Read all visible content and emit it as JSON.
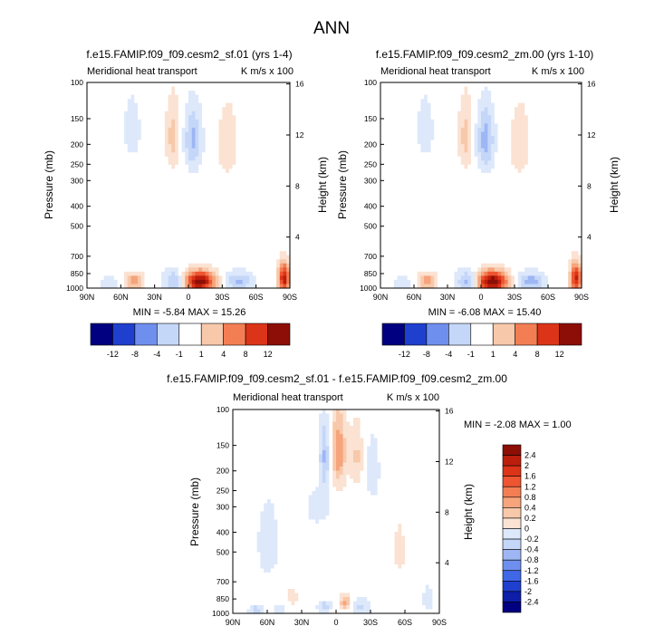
{
  "page_title": "ANN",
  "colors": {
    "blue_scale": [
      "#000080",
      "#0d1ea8",
      "#1f3fce",
      "#3f67e6",
      "#6f8fee",
      "#9eb6f4",
      "#c5d7f8",
      "#dde8fb"
    ],
    "neutral": "#ffffff",
    "red_scale": [
      "#fbe2d2",
      "#f8c8aa",
      "#f5a47c",
      "#f37e54",
      "#ee5530",
      "#dc3418",
      "#bb1e0c",
      "#8c0e06"
    ]
  },
  "chart_data": [
    {
      "type": "heatmap",
      "title": "f.e15.FAMIP.f09_f09.cesm2_sf.01 (yrs 1-4)",
      "left_string": "Meridional heat transport",
      "right_string": "K m/s x 100",
      "ylabel": "Pressure (mb)",
      "ylabel_right": "Height (km)",
      "x_ticks": [
        "90N",
        "60N",
        "30N",
        "0",
        "30S",
        "60S",
        "90S"
      ],
      "y_ticks": [
        "100",
        "150",
        "200",
        "250",
        "300",
        "400",
        "500",
        "700",
        "850",
        "1000"
      ],
      "y_right_ticks": [
        "16",
        "12",
        "8",
        "4"
      ],
      "stats": "MIN = -5.84  MAX = 15.26",
      "x_range": [
        90,
        -90
      ],
      "y_range": [
        100,
        1000
      ],
      "y_scale": "log",
      "colorbar": {
        "orientation": "horizontal",
        "labels": [
          "-12",
          "-8",
          "-4",
          "-1",
          "1",
          "4",
          "8",
          "12"
        ]
      },
      "features": [
        {
          "lat": -10,
          "p": 930,
          "value": 14,
          "w": 14,
          "h": 110
        },
        {
          "lat": 12,
          "p": 930,
          "value": -5,
          "w": 9,
          "h": 110
        },
        {
          "lat": 48,
          "p": 930,
          "value": 6,
          "w": 8,
          "h": 90
        },
        {
          "lat": -45,
          "p": 930,
          "value": -4.5,
          "w": 12,
          "h": 90
        },
        {
          "lat": 70,
          "p": 950,
          "value": -2,
          "w": 8,
          "h": 80
        },
        {
          "lat": -85,
          "p": 900,
          "value": 12,
          "w": 5,
          "h": 150
        },
        {
          "lat": -4,
          "p": 190,
          "value": -5,
          "w": 8,
          "h": 70
        },
        {
          "lat": 14,
          "p": 185,
          "value": 3,
          "w": 5,
          "h": 55
        },
        {
          "lat": -35,
          "p": 200,
          "value": 2.5,
          "w": 8,
          "h": 70
        },
        {
          "lat": 50,
          "p": 170,
          "value": -1.5,
          "w": 8,
          "h": 60
        }
      ]
    },
    {
      "type": "heatmap",
      "title": "f.e15.FAMIP.f09_f09.cesm2_zm.00 (yrs 1-10)",
      "left_string": "Meridional heat transport",
      "right_string": "K m/s x 100",
      "ylabel": "Pressure (mb)",
      "ylabel_right": "Height (km)",
      "x_ticks": [
        "90N",
        "60N",
        "30N",
        "0",
        "30S",
        "60S",
        "90S"
      ],
      "y_ticks": [
        "100",
        "150",
        "200",
        "250",
        "300",
        "400",
        "500",
        "700",
        "850",
        "1000"
      ],
      "y_right_ticks": [
        "16",
        "12",
        "8",
        "4"
      ],
      "stats": "MIN = -6.08  MAX = 15.40",
      "x_range": [
        90,
        -90
      ],
      "y_range": [
        100,
        1000
      ],
      "y_scale": "log",
      "colorbar": {
        "orientation": "horizontal",
        "labels": [
          "-12",
          "-8",
          "-4",
          "-1",
          "1",
          "4",
          "8",
          "12"
        ]
      },
      "features": [
        {
          "lat": -10,
          "p": 930,
          "value": 14.5,
          "w": 14,
          "h": 110
        },
        {
          "lat": 12,
          "p": 930,
          "value": -5.5,
          "w": 9,
          "h": 110
        },
        {
          "lat": 48,
          "p": 930,
          "value": 6,
          "w": 8,
          "h": 90
        },
        {
          "lat": -45,
          "p": 930,
          "value": -5,
          "w": 12,
          "h": 90
        },
        {
          "lat": 70,
          "p": 950,
          "value": -2,
          "w": 8,
          "h": 80
        },
        {
          "lat": -85,
          "p": 900,
          "value": 11,
          "w": 5,
          "h": 150
        },
        {
          "lat": -4,
          "p": 190,
          "value": -5.5,
          "w": 8,
          "h": 70
        },
        {
          "lat": 14,
          "p": 185,
          "value": 3,
          "w": 5,
          "h": 55
        },
        {
          "lat": -35,
          "p": 200,
          "value": 2.5,
          "w": 8,
          "h": 70
        },
        {
          "lat": 50,
          "p": 170,
          "value": -1.5,
          "w": 8,
          "h": 60
        }
      ]
    },
    {
      "type": "heatmap",
      "title": "f.e15.FAMIP.f09_f09.cesm2_sf.01 - f.e15.FAMIP.f09_f09.cesm2_zm.00",
      "left_string": "Meridional heat transport",
      "right_string": "K m/s x 100",
      "ylabel": "Pressure (mb)",
      "ylabel_right": "Height (km)",
      "x_ticks": [
        "90N",
        "60N",
        "30N",
        "0",
        "30S",
        "60S",
        "90S"
      ],
      "y_ticks": [
        "100",
        "150",
        "200",
        "250",
        "300",
        "400",
        "500",
        "700",
        "850",
        "1000"
      ],
      "y_right_ticks": [
        "16",
        "12",
        "8",
        "4"
      ],
      "stats": "MIN = -2.08  MAX =  1.00",
      "x_range": [
        90,
        -90
      ],
      "y_range": [
        100,
        1000
      ],
      "y_scale": "log",
      "colorbar": {
        "orientation": "vertical",
        "labels": [
          "2.4",
          "2",
          "1.6",
          "1.2",
          "0.8",
          "0.4",
          "0.2",
          "0",
          "-0.2",
          "-0.4",
          "-0.8",
          "-1.2",
          "-1.6",
          "-2",
          "-2.4"
        ]
      },
      "features": [
        {
          "lat": -2,
          "p": 160,
          "value": 1.0,
          "w": 6,
          "h": 60
        },
        {
          "lat": 10,
          "p": 170,
          "value": -0.9,
          "w": 5,
          "h": 70
        },
        {
          "lat": -18,
          "p": 170,
          "value": 0.5,
          "w": 5,
          "h": 50
        },
        {
          "lat": -32,
          "p": 200,
          "value": -0.4,
          "w": 6,
          "h": 70
        },
        {
          "lat": 15,
          "p": 300,
          "value": -0.5,
          "w": 10,
          "h": 60
        },
        {
          "lat": -8,
          "p": 880,
          "value": 0.9,
          "w": 5,
          "h": 80
        },
        {
          "lat": 10,
          "p": 930,
          "value": -0.7,
          "w": 5,
          "h": 60
        },
        {
          "lat": -22,
          "p": 930,
          "value": -0.5,
          "w": 6,
          "h": 60
        },
        {
          "lat": 38,
          "p": 830,
          "value": 0.4,
          "w": 6,
          "h": 90
        },
        {
          "lat": 70,
          "p": 960,
          "value": -0.6,
          "w": 6,
          "h": 50
        },
        {
          "lat": 50,
          "p": 960,
          "value": -0.3,
          "w": 5,
          "h": 50
        },
        {
          "lat": -80,
          "p": 850,
          "value": -0.4,
          "w": 4,
          "h": 120
        },
        {
          "lat": 60,
          "p": 450,
          "value": -0.25,
          "w": 10,
          "h": 200
        },
        {
          "lat": -55,
          "p": 500,
          "value": 0.2,
          "w": 10,
          "h": 300
        }
      ]
    }
  ]
}
